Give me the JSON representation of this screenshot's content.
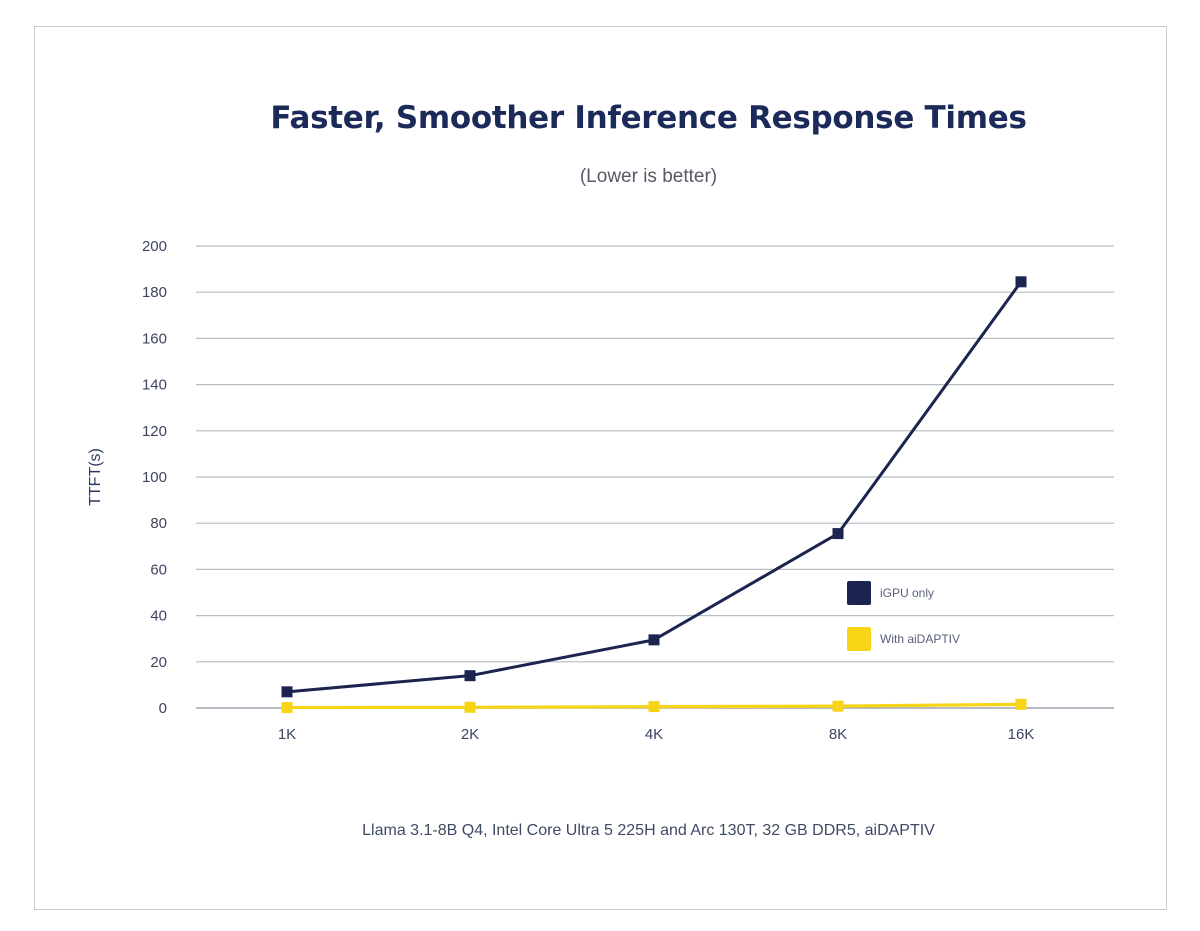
{
  "chart_data": {
    "type": "line",
    "title": "Faster, Smoother Inference Response Times",
    "subtitle": "(Lower is better)",
    "ylabel": "TTFT(s)",
    "xlabel": "",
    "categories": [
      "1K",
      "2K",
      "4K",
      "8K",
      "16K"
    ],
    "ylim": [
      0,
      200
    ],
    "yticks": [
      0,
      20,
      40,
      60,
      80,
      100,
      120,
      140,
      160,
      180,
      200
    ],
    "grid": true,
    "legend_position": "right",
    "series": [
      {
        "name": "iGPU only",
        "color": "#1c2550",
        "values": [
          7,
          14,
          29.5,
          75.5,
          184.5
        ]
      },
      {
        "name": "With aiDAPTIV",
        "color": "#f7d416",
        "values": [
          0.2,
          0.3,
          0.6,
          0.8,
          1.6
        ]
      }
    ],
    "footnote": "Llama 3.1-8B Q4, Intel Core Ultra 5 225H and Arc 130T, 32 GB DDR5, aiDAPTIV"
  }
}
